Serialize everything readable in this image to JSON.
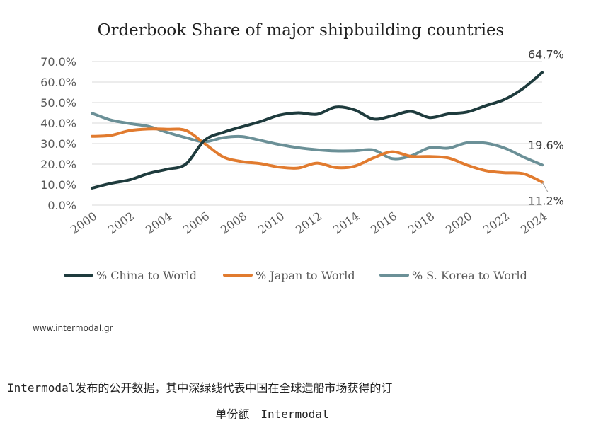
{
  "chart_data": {
    "type": "line",
    "title": "Orderbook Share of major shipbuilding countries",
    "xlabel": "",
    "ylabel": "",
    "ylim": [
      0,
      70
    ],
    "yticks": [
      "0.0%",
      "10.0%",
      "20.0%",
      "30.0%",
      "40.0%",
      "50.0%",
      "60.0%",
      "70.0%"
    ],
    "xticks": [
      "2000",
      "2002",
      "2004",
      "2006",
      "2008",
      "2010",
      "2012",
      "2014",
      "2016",
      "2018",
      "2020",
      "2022",
      "2024"
    ],
    "grid": "horizontal",
    "legend_position": "bottom",
    "x": [
      2000,
      2001,
      2002,
      2003,
      2004,
      2005,
      2006,
      2007,
      2008,
      2009,
      2010,
      2011,
      2012,
      2013,
      2014,
      2015,
      2016,
      2017,
      2018,
      2019,
      2020,
      2021,
      2022,
      2023,
      2024
    ],
    "series": [
      {
        "name": "% China to World",
        "color": "#1e3b3d",
        "values": [
          8.3,
          10.6,
          12.3,
          15.4,
          17.5,
          20.0,
          31.6,
          35.5,
          38.2,
          40.8,
          43.9,
          45.0,
          44.3,
          47.8,
          46.4,
          42.0,
          43.5,
          45.7,
          42.7,
          44.5,
          45.4,
          48.5,
          51.5,
          57.0,
          64.7
        ]
      },
      {
        "name": "% Japan to World",
        "color": "#e17b2f",
        "values": [
          33.5,
          34.0,
          36.3,
          37.1,
          37.0,
          36.4,
          30.0,
          23.5,
          21.2,
          20.2,
          18.5,
          18.1,
          20.5,
          18.3,
          19.0,
          23.0,
          26.0,
          23.8,
          23.7,
          23.0,
          19.5,
          16.8,
          15.8,
          15.3,
          11.2
        ]
      },
      {
        "name": "% S. Korea to World",
        "color": "#6b9097",
        "values": [
          44.8,
          41.5,
          39.8,
          38.4,
          35.5,
          32.9,
          30.9,
          32.9,
          33.4,
          31.5,
          29.5,
          28.0,
          27.0,
          26.4,
          26.5,
          26.9,
          22.7,
          24.0,
          28.0,
          27.8,
          30.4,
          30.2,
          27.8,
          23.5,
          19.6
        ]
      }
    ],
    "annotations": [
      {
        "text": "64.7%",
        "series": "% China to World",
        "x": 2024
      },
      {
        "text": "19.6%",
        "series": "% S. Korea to World",
        "x": 2024
      },
      {
        "text": "11.2%",
        "series": "% Japan to World",
        "x": 2024
      }
    ]
  },
  "source_text": "www.intermodal.gr",
  "caption": {
    "line1": "Intermodal发布的公开数据，其中深绿线代表中国在全球造船市场获得的订",
    "line2": "单份额　Intermodal"
  }
}
